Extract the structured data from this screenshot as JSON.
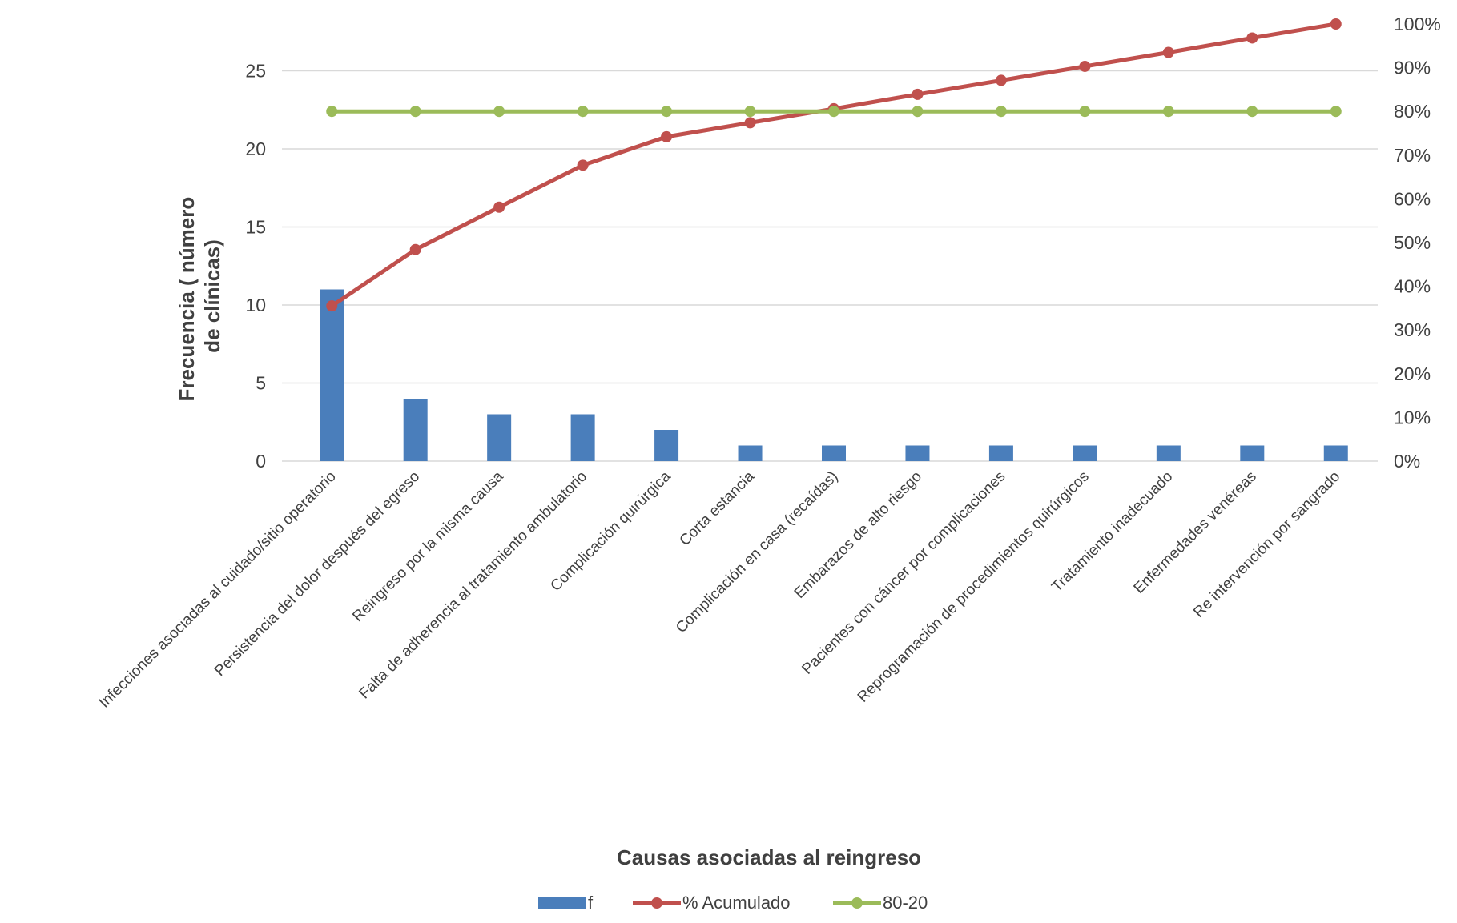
{
  "chart_data": {
    "type": "bar",
    "xlabel": "Causas asociadas al reingreso",
    "ylabel_lines": [
      "Frecuencia ( número",
      "de clínicas)"
    ],
    "ylim": [
      0,
      28
    ],
    "yticks": [
      0,
      5,
      10,
      15,
      20,
      25
    ],
    "y2lim": [
      0,
      100
    ],
    "y2ticks": [
      "0%",
      "10%",
      "20%",
      "30%",
      "40%",
      "50%",
      "60%",
      "70%",
      "80%",
      "90%",
      "100%"
    ],
    "categories": [
      "Infecciones asociadas al cuidado/sitio operatorio",
      "Persistencia del dolor después del egreso",
      "Reingreso por la misma causa",
      "Falta de adherencia al tratamiento ambulatorio",
      "Complicación quirúrgica",
      "Corta estancia",
      "Complicación en casa (recaídas)",
      "Embarazos de alto riesgo",
      "Pacientes con cáncer por complicaciones",
      "Reprogramación de procedimientos quirúrgicos",
      "Tratamiento inadecuado",
      "Enfermedades venéreas",
      "Re intervención por sangrado"
    ],
    "series": [
      {
        "name": "f",
        "kind": "bar",
        "axis": "left",
        "color": "#4a7ebb",
        "values": [
          11,
          4,
          3,
          3,
          2,
          1,
          1,
          1,
          1,
          1,
          1,
          1,
          1
        ]
      },
      {
        "name": "% Acumulado",
        "kind": "line",
        "axis": "right",
        "color": "#c0504d",
        "values": [
          35.5,
          48.4,
          58.1,
          67.7,
          74.2,
          77.4,
          80.6,
          83.9,
          87.1,
          90.3,
          93.5,
          96.8,
          100
        ]
      },
      {
        "name": "80-20",
        "kind": "line",
        "axis": "right",
        "color": "#9bbb59",
        "values": [
          80,
          80,
          80,
          80,
          80,
          80,
          80,
          80,
          80,
          80,
          80,
          80,
          80
        ]
      }
    ],
    "grid": true,
    "legend_position": "bottom"
  }
}
